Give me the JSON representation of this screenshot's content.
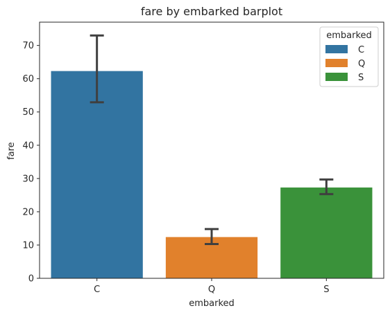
{
  "chart_data": {
    "type": "bar",
    "title": "fare by embarked barplot",
    "xlabel": "embarked",
    "ylabel": "fare",
    "categories": [
      "C",
      "Q",
      "S"
    ],
    "values": [
      62.3,
      12.4,
      27.3
    ],
    "error_low": [
      52.9,
      10.3,
      25.3
    ],
    "error_high": [
      73.0,
      14.8,
      29.7
    ],
    "colors": [
      "#3274a1",
      "#e1812c",
      "#3a923a"
    ],
    "ylim": [
      0,
      77
    ],
    "yticks": [
      0,
      10,
      20,
      30,
      40,
      50,
      60,
      70
    ],
    "grid": false,
    "legend": {
      "title": "embarked",
      "position": "top-right",
      "entries": [
        "C",
        "Q",
        "S"
      ]
    }
  }
}
